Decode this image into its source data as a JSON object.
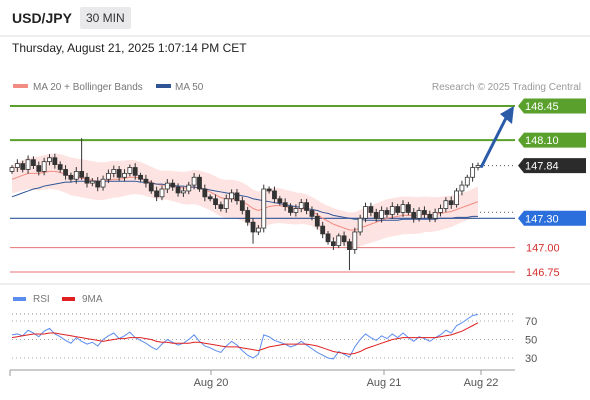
{
  "header": {
    "pair": "USD/JPY",
    "timeframe": "30 MIN",
    "datetime": "Thursday, August 21, 2025 1:07:14 PM CET"
  },
  "legend": {
    "bb_label": "MA 20 + Bollinger Bands",
    "ma50_label": "MA 50",
    "source": "Research © 2025 Trading Central",
    "bb_color": "#f28b82",
    "ma50_color": "#2f5597"
  },
  "rsi_legend": {
    "rsi_label": "RSI",
    "ma_label": "9MA",
    "rsi_color": "#5b8def",
    "ma_color": "#e02020"
  },
  "price_axis": {
    "ymin": 146.6,
    "ymax": 148.6
  },
  "levels": [
    {
      "label": "148.45",
      "value": 148.45,
      "style": "green-tag"
    },
    {
      "label": "148.10",
      "value": 148.1,
      "style": "green-tag"
    },
    {
      "label": "147.84",
      "value": 147.84,
      "style": "dark-tag"
    },
    {
      "label": "147.30",
      "value": 147.3,
      "style": "blue-tag"
    },
    {
      "label": "147.00",
      "value": 147.0,
      "style": "red-text"
    },
    {
      "label": "146.75",
      "value": 146.75,
      "style": "red-text"
    }
  ],
  "rsi_axis": {
    "ymin": 20,
    "ymax": 80,
    "ticks": [
      "70",
      "50",
      "30"
    ]
  },
  "x_labels": [
    "Aug 20",
    "Aug 21",
    "Aug 22"
  ],
  "chart_data": {
    "type": "candlestick",
    "x_count": 88,
    "last_price": 147.84,
    "arrow_target": 148.45,
    "closes": [
      147.82,
      147.86,
      147.8,
      147.9,
      147.84,
      147.78,
      147.88,
      147.92,
      147.85,
      147.8,
      147.74,
      147.7,
      147.78,
      147.72,
      147.66,
      147.68,
      147.62,
      147.7,
      147.76,
      147.8,
      147.72,
      147.76,
      147.82,
      147.74,
      147.7,
      147.66,
      147.58,
      147.52,
      147.6,
      147.66,
      147.62,
      147.56,
      147.58,
      147.64,
      147.72,
      147.6,
      147.52,
      147.5,
      147.44,
      147.4,
      147.5,
      147.56,
      147.48,
      147.38,
      147.26,
      147.16,
      147.2,
      147.6,
      147.58,
      147.5,
      147.46,
      147.42,
      147.36,
      147.4,
      147.46,
      147.38,
      147.32,
      147.22,
      147.14,
      147.06,
      147.02,
      147.12,
      147.06,
      146.98,
      147.16,
      147.3,
      147.42,
      147.36,
      147.3,
      147.38,
      147.34,
      147.42,
      147.36,
      147.44,
      147.36,
      147.3,
      147.38,
      147.34,
      147.3,
      147.36,
      147.4,
      147.48,
      147.44,
      147.58,
      147.64,
      147.72,
      147.82,
      147.84
    ],
    "ma20": [
      147.7,
      147.72,
      147.74,
      147.76,
      147.76,
      147.76,
      147.77,
      147.78,
      147.78,
      147.77,
      147.75,
      147.73,
      147.72,
      147.71,
      147.7,
      147.69,
      147.68,
      147.68,
      147.69,
      147.7,
      147.7,
      147.71,
      147.72,
      147.72,
      147.71,
      147.69,
      147.67,
      147.65,
      147.64,
      147.64,
      147.63,
      147.62,
      147.61,
      147.61,
      147.62,
      147.61,
      147.59,
      147.57,
      147.54,
      147.51,
      147.5,
      147.5,
      147.49,
      147.47,
      147.44,
      147.4,
      147.38,
      147.4,
      147.42,
      147.43,
      147.43,
      147.42,
      147.41,
      147.4,
      147.4,
      147.39,
      147.37,
      147.34,
      147.3,
      147.27,
      147.24,
      147.22,
      147.2,
      147.18,
      147.18,
      147.2,
      147.22,
      147.24,
      147.26,
      147.28,
      147.3,
      147.31,
      147.32,
      147.33,
      147.33,
      147.33,
      147.33,
      147.34,
      147.34,
      147.34,
      147.35,
      147.36,
      147.37,
      147.39,
      147.41,
      147.43,
      147.45,
      147.47
    ],
    "ma50": [
      147.52,
      147.54,
      147.56,
      147.58,
      147.6,
      147.61,
      147.63,
      147.64,
      147.65,
      147.66,
      147.67,
      147.67,
      147.68,
      147.68,
      147.68,
      147.68,
      147.68,
      147.68,
      147.68,
      147.68,
      147.68,
      147.68,
      147.68,
      147.68,
      147.67,
      147.67,
      147.66,
      147.65,
      147.65,
      147.64,
      147.64,
      147.63,
      147.63,
      147.62,
      147.62,
      147.61,
      147.6,
      147.59,
      147.58,
      147.57,
      147.56,
      147.55,
      147.54,
      147.53,
      147.52,
      147.5,
      147.49,
      147.48,
      147.47,
      147.46,
      147.45,
      147.44,
      147.43,
      147.42,
      147.41,
      147.4,
      147.39,
      147.38,
      147.36,
      147.35,
      147.33,
      147.32,
      147.31,
      147.3,
      147.29,
      147.29,
      147.28,
      147.28,
      147.28,
      147.28,
      147.28,
      147.28,
      147.28,
      147.29,
      147.29,
      147.29,
      147.29,
      147.29,
      147.29,
      147.29,
      147.3,
      147.3,
      147.3,
      147.31,
      147.31,
      147.31,
      147.32,
      147.32
    ],
    "rsi": [
      55,
      56,
      54,
      60,
      57,
      53,
      59,
      62,
      56,
      53,
      49,
      46,
      52,
      48,
      45,
      47,
      43,
      50,
      54,
      57,
      51,
      54,
      58,
      52,
      49,
      46,
      42,
      39,
      45,
      50,
      47,
      44,
      46,
      50,
      55,
      48,
      43,
      41,
      38,
      36,
      43,
      48,
      44,
      38,
      33,
      30,
      34,
      55,
      53,
      49,
      47,
      45,
      42,
      44,
      48,
      44,
      40,
      36,
      33,
      30,
      29,
      37,
      34,
      31,
      42,
      50,
      56,
      52,
      49,
      54,
      51,
      56,
      52,
      57,
      52,
      48,
      53,
      51,
      48,
      52,
      55,
      60,
      57,
      65,
      68,
      72,
      76,
      77
    ],
    "rsi_ma": [
      52,
      53,
      54,
      55,
      56,
      56,
      56,
      57,
      57,
      56,
      55,
      54,
      53,
      52,
      51,
      50,
      49,
      48,
      49,
      50,
      51,
      51,
      52,
      52,
      52,
      51,
      50,
      48,
      47,
      47,
      46,
      46,
      46,
      46,
      47,
      47,
      46,
      45,
      44,
      43,
      42,
      42,
      42,
      41,
      40,
      39,
      38,
      40,
      42,
      43,
      44,
      45,
      45,
      45,
      45,
      45,
      44,
      43,
      41,
      39,
      37,
      36,
      35,
      34,
      35,
      37,
      40,
      42,
      44,
      46,
      48,
      50,
      51,
      52,
      52,
      52,
      52,
      52,
      52,
      52,
      53,
      54,
      55,
      57,
      59,
      62,
      65,
      68
    ]
  }
}
